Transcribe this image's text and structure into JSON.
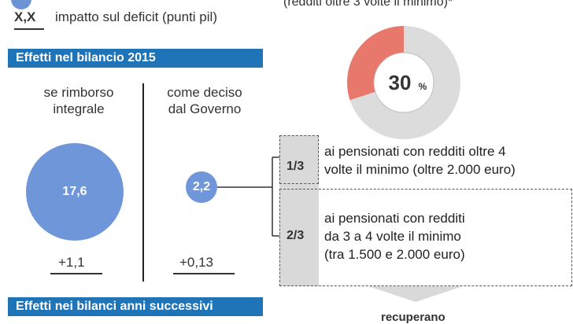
{
  "legend": {
    "value_symbol": "X,X",
    "deficit_text": "impatto sul deficit (punti pil)"
  },
  "top_note": "(redditi oltre 3 volte il minimo)*",
  "section_2015": {
    "title": "Effetti nel bilancio 2015",
    "col_left": [
      "se rimborso",
      "integrale"
    ],
    "col_right": [
      "come deciso",
      "dal Governo"
    ],
    "left_value": "17,6",
    "right_value": "2,2",
    "left_deficit": "+1,1",
    "right_deficit": "+0,13"
  },
  "section_next": {
    "title": "Effetti nei bilanci anni successivi"
  },
  "donut": {
    "label": "30",
    "unit": "%"
  },
  "breakdown": [
    {
      "fraction": "1/3",
      "lines": [
        "ai pensionati con redditi oltre 4",
        "volte il minimo (oltre 2.000 euro)"
      ]
    },
    {
      "fraction": "2/3",
      "lines": [
        "ai pensionati con redditi",
        "da 3 a 4 volte il minimo",
        "(tra 1.500 e 2.000 euro)"
      ]
    }
  ],
  "bottom_text": "recuperano",
  "colors": {
    "bubble": "#6f96d8",
    "bar": "#1f73b7",
    "donut_highlight": "#e8776c",
    "donut_rest": "#dcdcdc",
    "box_fill": "#d9d9d9"
  },
  "chart_data": [
    {
      "type": "scatter",
      "title": "Effetti nel bilancio 2015",
      "categories": [
        "se rimborso integrale",
        "come deciso dal Governo"
      ],
      "series": [
        {
          "values": [
            17.6,
            2.2
          ]
        },
        {
          "name": "impatto sul deficit (punti pil)",
          "values": [
            1.1,
            0.13
          ]
        }
      ]
    },
    {
      "type": "pie",
      "values": [
        30,
        70
      ],
      "labels": [
        "30%",
        ""
      ]
    }
  ]
}
